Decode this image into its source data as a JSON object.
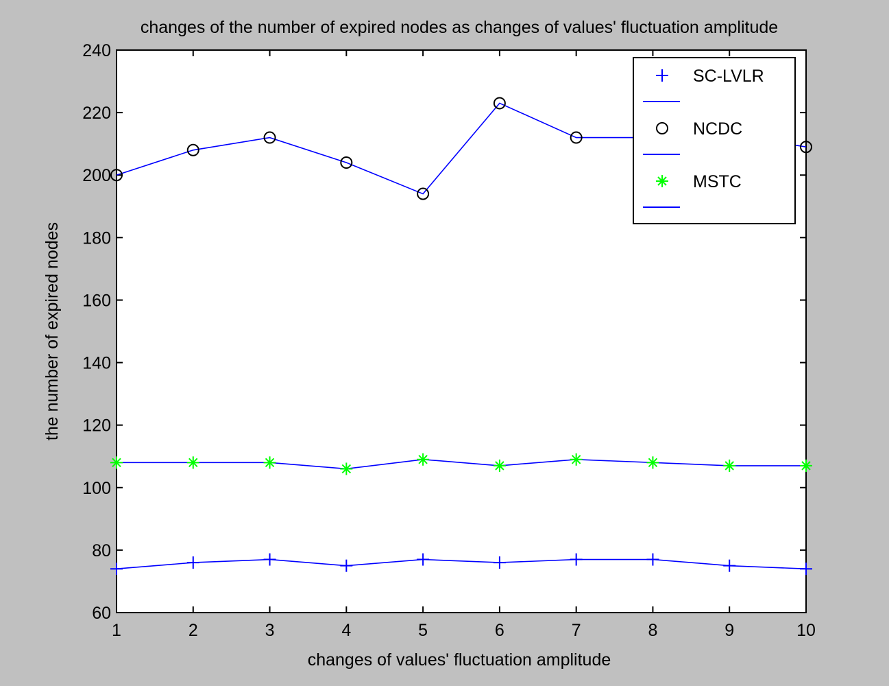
{
  "chart_data": {
    "type": "line",
    "title": "changes of the number of expired nodes as changes of values' fluctuation amplitude",
    "xlabel": "changes of values'  fluctuation amplitude",
    "ylabel": "the number of expired nodes",
    "xlim": [
      1,
      10
    ],
    "ylim": [
      60,
      240
    ],
    "xticks": [
      1,
      2,
      3,
      4,
      5,
      6,
      7,
      8,
      9,
      10
    ],
    "yticks": [
      60,
      80,
      100,
      120,
      140,
      160,
      180,
      200,
      220,
      240
    ],
    "x": [
      1,
      2,
      3,
      4,
      5,
      6,
      7,
      8,
      9,
      10
    ],
    "grid": false,
    "legend_position": "top-right",
    "line_color": "#0000ff",
    "series": [
      {
        "name": "SC-LVLR",
        "marker": "plus",
        "marker_color": "#0000ff",
        "values": [
          74,
          76,
          77,
          75,
          77,
          76,
          77,
          77,
          75,
          74
        ]
      },
      {
        "name": "NCDC",
        "marker": "circle",
        "marker_color": "#000000",
        "values": [
          200,
          208,
          212,
          204,
          194,
          223,
          212,
          212,
          213,
          209
        ]
      },
      {
        "name": "MSTC",
        "marker": "star",
        "marker_color": "#00ff00",
        "values": [
          108,
          108,
          108,
          106,
          109,
          107,
          109,
          108,
          107,
          107
        ]
      }
    ]
  }
}
